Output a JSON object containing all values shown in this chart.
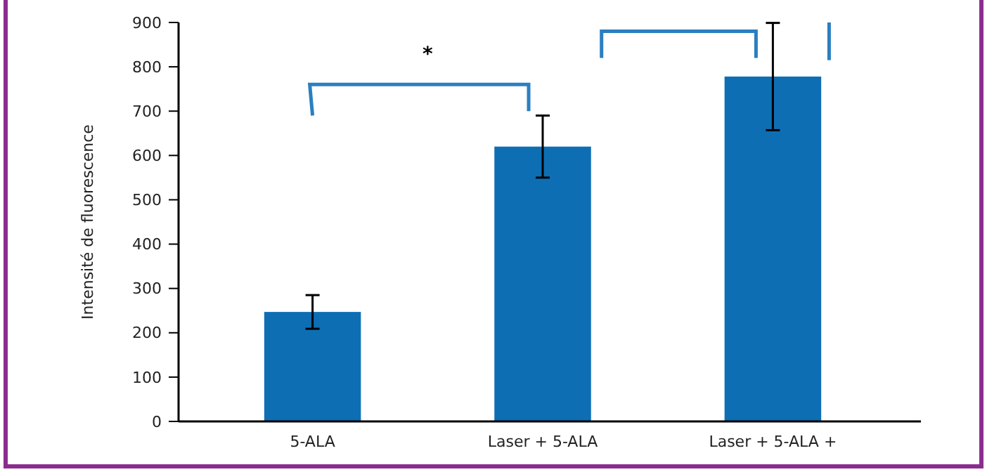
{
  "chart_data": {
    "type": "bar",
    "ylabel": "Intensité de fluorescence",
    "categories": [
      "5-ALA",
      "Laser + 5-ALA",
      "Laser + 5-ALA +"
    ],
    "values": [
      247,
      620,
      778
    ],
    "color": "#0e6eb4",
    "errors": [
      38,
      70,
      121
    ],
    "ylim": [
      0,
      900
    ],
    "yticks": [
      0,
      100,
      200,
      300,
      400,
      500,
      600,
      700,
      800,
      900
    ],
    "grid": false,
    "annotations": [
      "*"
    ]
  }
}
